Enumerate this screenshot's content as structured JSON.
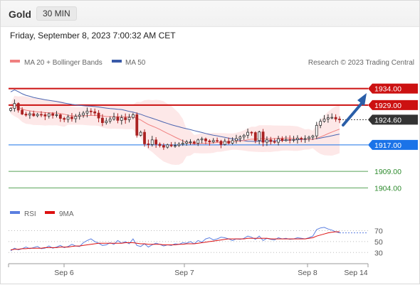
{
  "header": {
    "symbol": "Gold",
    "timeframe": "30 MIN"
  },
  "subtitle": "Friday, September 8, 2023 7:00:32 AM CET",
  "legend": {
    "ma20": "MA 20 + Bollinger Bands",
    "ma50": "MA 50",
    "rsi": "RSI",
    "ma9": "9MA"
  },
  "attribution": "Research © 2023 Trading Central",
  "colors": {
    "resistance": "#cc1111",
    "current": "#333333",
    "pivot": "#1a73e8",
    "support": "#2e8b2e",
    "arrow": "#2a5ea8",
    "ma20": "#f08080",
    "ma50": "#4a64b0",
    "bollinger": "#fde4e4",
    "candle_up": "#333333",
    "candle_down": "#aa2222",
    "rsi": "#5b7fe0",
    "ma9": "#d11"
  },
  "chart_data": {
    "type": "candlestick",
    "x_ticks": [
      "Sep 6",
      "Sep 7",
      "Sep 8",
      "Sep 14"
    ],
    "y_range": [
      1900,
      1938
    ],
    "levels": [
      {
        "value": 1934.0,
        "label": "1934.00",
        "kind": "resistance"
      },
      {
        "value": 1929.0,
        "label": "1929.00",
        "kind": "resistance"
      },
      {
        "value": 1924.6,
        "label": "1924.60",
        "kind": "current"
      },
      {
        "value": 1917.0,
        "label": "1917.00",
        "kind": "pivot"
      },
      {
        "value": 1909.0,
        "label": "1909.00",
        "kind": "support"
      },
      {
        "value": 1904.0,
        "label": "1904.00",
        "kind": "support"
      }
    ],
    "close": [
      1928.0,
      1929.5,
      1927.5,
      1926.3,
      1926.0,
      1926.4,
      1925.8,
      1926.2,
      1926.1,
      1925.7,
      1926.4,
      1925.9,
      1926.1,
      1925.0,
      1924.7,
      1925.4,
      1924.9,
      1925.6,
      1926.0,
      1926.6,
      1927.2,
      1927.0,
      1926.6,
      1925.1,
      1923.7,
      1924.2,
      1924.8,
      1925.4,
      1924.4,
      1925.2,
      1924.6,
      1925.3,
      1926.1,
      1919.9,
      1920.8,
      1917.3,
      1917.1,
      1918.5,
      1917.2,
      1916.8,
      1916.3,
      1917.0,
      1916.7,
      1916.8,
      1917.2,
      1917.5,
      1917.9,
      1917.9,
      1917.5,
      1918.5,
      1918.8,
      1918.2,
      1917.9,
      1918.3,
      1918.1,
      1917.1,
      1918.1,
      1917.5,
      1918.3,
      1918.9,
      1919.4,
      1919.9,
      1920.8,
      1920.7,
      1918.3,
      1920.9,
      1917.8,
      1918.5,
      1918.0,
      1917.8,
      1918.8,
      1918.3,
      1918.6,
      1918.5,
      1918.6,
      1919.0,
      1918.8,
      1918.9,
      1919.3,
      1919.7,
      1922.9,
      1924.1,
      1924.8,
      1925.2,
      1925.3,
      1924.8,
      1924.6
    ],
    "rsi": {
      "ticks": [
        70,
        50,
        30
      ],
      "rsi_values": [
        33,
        38,
        35,
        37,
        40,
        37,
        39,
        41,
        37,
        38,
        42,
        38,
        40,
        43,
        39,
        41,
        45,
        42,
        41,
        48,
        52,
        55,
        50,
        47,
        43,
        44,
        48,
        45,
        52,
        47,
        50,
        46,
        55,
        43,
        41,
        46,
        40,
        44,
        47,
        45,
        42,
        44,
        43,
        46,
        45,
        48,
        47,
        50,
        46,
        52,
        49,
        55,
        57,
        53,
        55,
        58,
        57,
        55,
        52,
        55,
        54,
        56,
        60,
        58,
        54,
        60,
        52,
        56,
        54,
        53,
        57,
        55,
        56,
        54,
        55,
        57,
        56,
        55,
        57,
        60,
        72,
        75,
        76,
        73,
        71,
        68,
        66
      ],
      "ma9_values": [
        35,
        36,
        36,
        37,
        37,
        38,
        38,
        38,
        38,
        39,
        39,
        39,
        39,
        40,
        40,
        40,
        41,
        42,
        42,
        43,
        44,
        45,
        46,
        47,
        47,
        47,
        47,
        47,
        47,
        47,
        48,
        48,
        48,
        47,
        46,
        46,
        45,
        45,
        45,
        45,
        44,
        44,
        44,
        44,
        45,
        45,
        46,
        46,
        46,
        47,
        48,
        49,
        50,
        51,
        52,
        53,
        54,
        55,
        55,
        55,
        55,
        55,
        56,
        56,
        56,
        56,
        56,
        56,
        55,
        55,
        55,
        55,
        55,
        55,
        55,
        55,
        55,
        55,
        56,
        57,
        60,
        62,
        64,
        66,
        67,
        68,
        68
      ]
    }
  }
}
